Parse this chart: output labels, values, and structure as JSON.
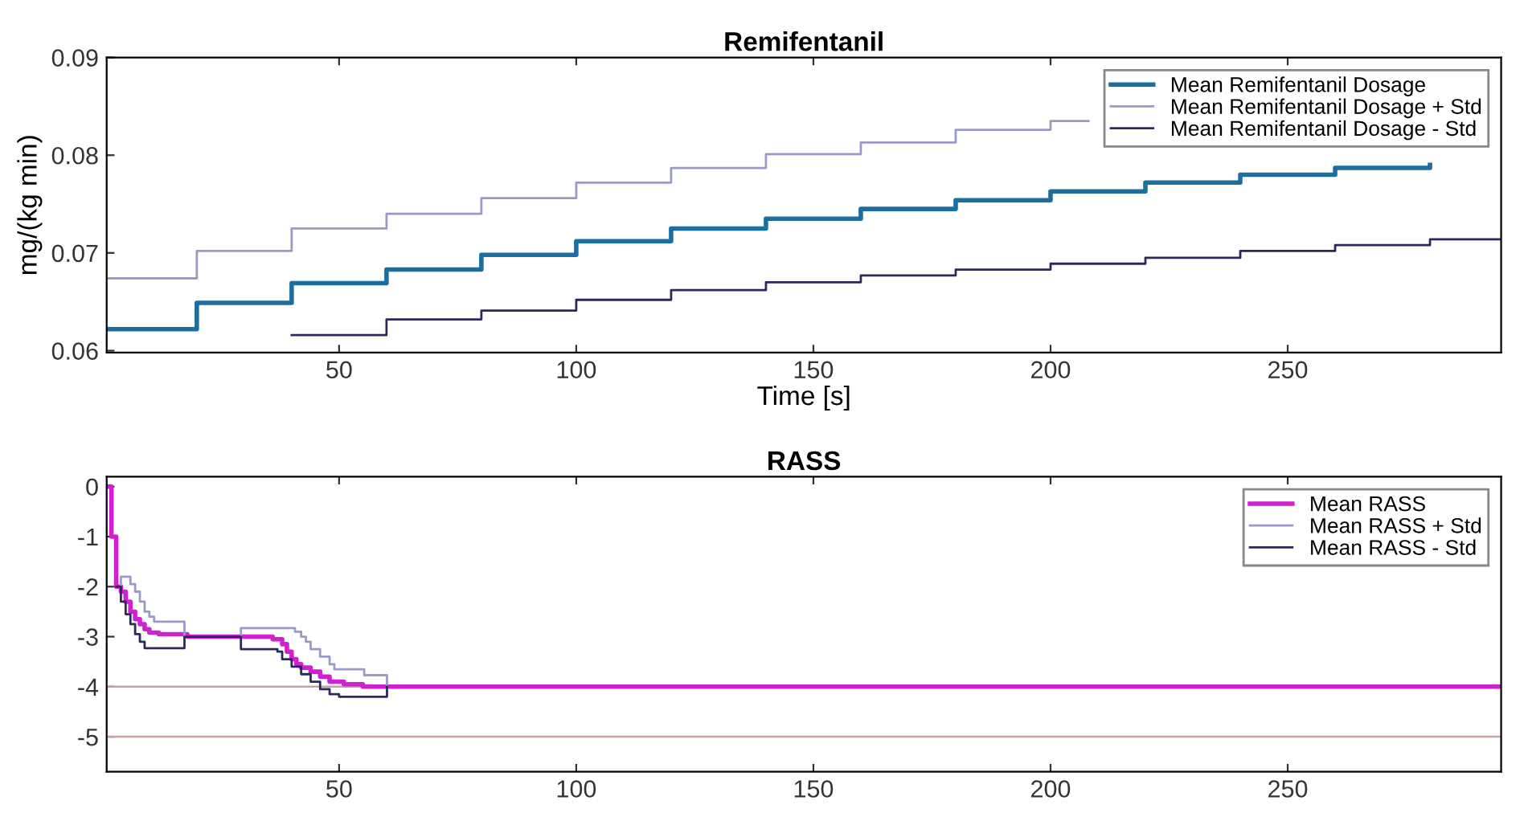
{
  "chart_data": [
    {
      "type": "step",
      "title": "Remifentanil",
      "xlabel": "Time [s]",
      "ylabel": "mg/(kg min)",
      "xlim": [
        1,
        295
      ],
      "xticks": [
        50,
        100,
        150,
        200,
        250
      ],
      "ylim": [
        0.0598,
        0.09
      ],
      "yticks": [
        0.06,
        0.07,
        0.08,
        0.09
      ],
      "legend": "top right",
      "grid": false,
      "series": [
        {
          "name": "Mean Remifentanil Dosage",
          "color": "#1a6fa0",
          "x": [
            1,
            20,
            40,
            60,
            80,
            100,
            120,
            140,
            160,
            180,
            200,
            220,
            240,
            260,
            280
          ],
          "values": [
            0.0622,
            0.0649,
            0.0669,
            0.0683,
            0.0698,
            0.0712,
            0.0725,
            0.0735,
            0.0745,
            0.0754,
            0.0763,
            0.0772,
            0.078,
            0.0787,
            0.079
          ]
        },
        {
          "name": "Mean Remifentanil Dosage + Std",
          "color": "#9a9ac8",
          "x": [
            1,
            20,
            40,
            60,
            80,
            100,
            120,
            140,
            160,
            180,
            200,
            208
          ],
          "values": [
            0.0674,
            0.0702,
            0.0725,
            0.074,
            0.0756,
            0.0772,
            0.0787,
            0.0801,
            0.0813,
            0.0826,
            0.0835,
            0.0835
          ]
        },
        {
          "name": "Mean Remifentanil Dosage - Std",
          "color": "#2a2a5a",
          "x": [
            40,
            60,
            80,
            100,
            120,
            140,
            160,
            180,
            200,
            220,
            240,
            260,
            280,
            295
          ],
          "values": [
            0.0616,
            0.0632,
            0.0641,
            0.0652,
            0.0662,
            0.067,
            0.0677,
            0.0683,
            0.0689,
            0.0695,
            0.0702,
            0.0708,
            0.0714,
            0.0714
          ]
        }
      ]
    },
    {
      "type": "step",
      "title": "RASS",
      "xlim": [
        1,
        295
      ],
      "xticks": [
        50,
        100,
        150,
        200,
        250
      ],
      "ylim": [
        -5.7,
        0.2
      ],
      "yticks": [
        -5,
        -4,
        -3,
        -2,
        -1,
        0
      ],
      "legend": "top right",
      "grid": false,
      "ref_lines": [
        {
          "axis": "y",
          "value": -4,
          "color": "#c8a0a0"
        },
        {
          "axis": "y",
          "value": -5,
          "color": "#c8a0a0"
        }
      ],
      "series": [
        {
          "name": "Mean RASS",
          "color": "#d020d0",
          "x": [
            1,
            2,
            3,
            4,
            5,
            6,
            7,
            8,
            9,
            10,
            12,
            18,
            36,
            38,
            39,
            40,
            41,
            42,
            44,
            46,
            48,
            51,
            55,
            295
          ],
          "values": [
            0,
            -1,
            -2,
            -2.1,
            -2.3,
            -2.5,
            -2.65,
            -2.75,
            -2.85,
            -2.92,
            -2.95,
            -3.0,
            -3.05,
            -3.15,
            -3.3,
            -3.45,
            -3.55,
            -3.62,
            -3.7,
            -3.8,
            -3.9,
            -3.95,
            -4.0,
            -4.0
          ]
        },
        {
          "name": "Mean RASS + Std",
          "color": "#9a9ac8",
          "x": [
            3,
            4,
            6,
            7,
            8,
            9,
            10,
            11,
            17.4,
            29.3,
            40.7,
            42,
            43,
            44,
            46,
            48,
            49,
            55.3,
            60.1
          ],
          "values": [
            -2.0,
            -1.8,
            -1.95,
            -2.1,
            -2.3,
            -2.5,
            -2.6,
            -2.7,
            -3.0,
            -2.83,
            -2.9,
            -3.0,
            -3.1,
            -3.25,
            -3.4,
            -3.55,
            -3.65,
            -3.77,
            -4.0
          ]
        },
        {
          "name": "Mean RASS - Std",
          "color": "#2a2a5a",
          "x": [
            3,
            4,
            5,
            6,
            7,
            8,
            9,
            17.4,
            29.3,
            37,
            38,
            40,
            42,
            44,
            46,
            48,
            50,
            60.1
          ],
          "values": [
            -2.0,
            -2.3,
            -2.55,
            -2.75,
            -2.95,
            -3.1,
            -3.23,
            -3.0,
            -3.25,
            -3.3,
            -3.45,
            -3.6,
            -3.75,
            -3.9,
            -4.05,
            -4.15,
            -4.2,
            -4.0
          ]
        }
      ]
    }
  ]
}
